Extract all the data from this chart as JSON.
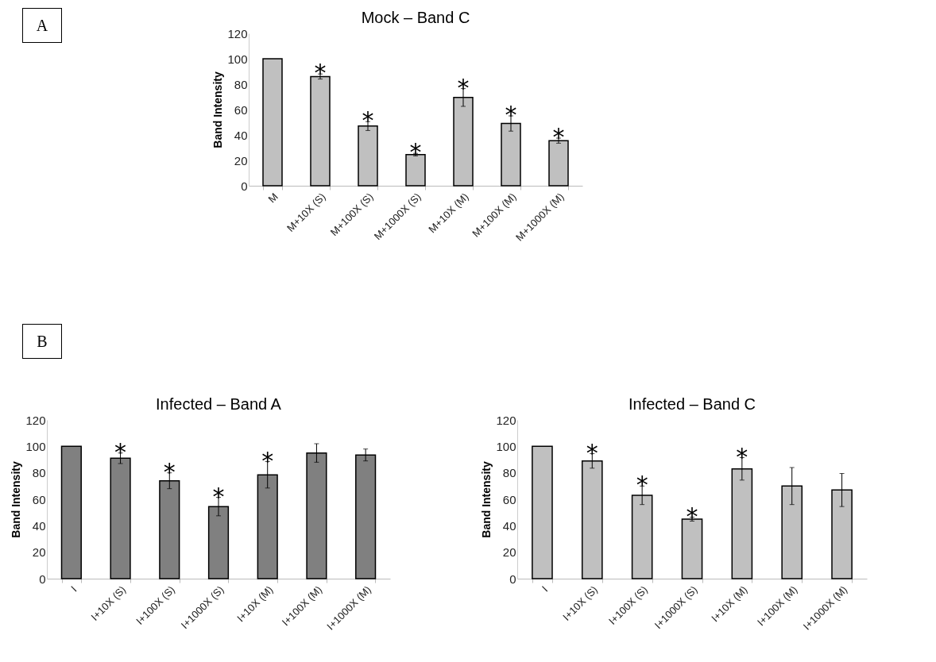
{
  "chart_data": [
    {
      "type": "bar",
      "title": "Mock – Band C",
      "ylabel": "Band Intensity",
      "categories": [
        "M",
        "M+10X (S)",
        "M+100X (S)",
        "M+1000X (S)",
        "M+10X (M)",
        "M+100X (M)",
        "M+1000X (M)"
      ],
      "values": [
        100,
        86,
        47,
        24.5,
        69.5,
        49,
        35.5
      ],
      "errors": [
        null,
        2,
        3.5,
        1,
        7,
        6,
        2
      ],
      "color": "#c0c0c0",
      "ylim": [
        0,
        120
      ],
      "yticks": [
        0,
        20,
        40,
        60,
        80,
        100,
        120
      ],
      "grid": false,
      "annotations": [
        "A",
        {
          "text": "*",
          "x": "M+10X (S)",
          "y": 86
        },
        {
          "text": "*",
          "x": "M+100X (S)",
          "y": 47
        },
        {
          "text": "*",
          "x": "M+1000X (S)",
          "y": 24.5
        },
        {
          "text": "*",
          "x": "M+10X (M)",
          "y": 69.5
        },
        {
          "text": "*",
          "x": "M+100X (M)",
          "y": 49
        },
        {
          "text": "*",
          "x": "M+1000X (M)",
          "y": 35.5
        }
      ]
    },
    {
      "type": "bar",
      "title": "Infected – Band A",
      "ylabel": "Band Intensity",
      "categories": [
        "I",
        "I+10X (S)",
        "I+100X (S)",
        "I+1000X (S)",
        "I+10X (M)",
        "I+100X (M)",
        "I+1000X (M)"
      ],
      "values": [
        100,
        91,
        74,
        54.5,
        78.5,
        95,
        93.5
      ],
      "errors": [
        null,
        4,
        6,
        7,
        10,
        7,
        4.5
      ],
      "color": "#808080",
      "ylim": [
        0,
        120
      ],
      "yticks": [
        0,
        20,
        40,
        60,
        80,
        100,
        120
      ],
      "grid": false,
      "annotations": [
        "B",
        {
          "text": "*",
          "x": "I+10X (S)",
          "y": 91
        },
        {
          "text": "*",
          "x": "I+100X (S)",
          "y": 74
        },
        {
          "text": "*",
          "x": "I+1000X (S)",
          "y": 54.5
        },
        {
          "text": "*",
          "x": "I+10X (M)",
          "y": 78.5
        }
      ]
    },
    {
      "type": "bar",
      "title": "Infected – Band C",
      "ylabel": "Band Intensity",
      "categories": [
        "I",
        "I+10X (S)",
        "I+100X (S)",
        "I+1000X (S)",
        "I+10X (M)",
        "I+100X (M)",
        "I+1000X (M)"
      ],
      "values": [
        100,
        89,
        63,
        45,
        83,
        70,
        67
      ],
      "errors": [
        null,
        5.5,
        7,
        1.5,
        8.5,
        14,
        12.5
      ],
      "color": "#c0c0c0",
      "ylim": [
        0,
        120
      ],
      "yticks": [
        0,
        20,
        40,
        60,
        80,
        100,
        120
      ],
      "grid": false,
      "annotations": [
        {
          "text": "*",
          "x": "I+10X (S)",
          "y": 89
        },
        {
          "text": "*",
          "x": "I+100X (S)",
          "y": 63
        },
        {
          "text": "*",
          "x": "I+1000X (S)",
          "y": 45
        },
        {
          "text": "*",
          "x": "I+10X (M)",
          "y": 83
        }
      ]
    }
  ]
}
